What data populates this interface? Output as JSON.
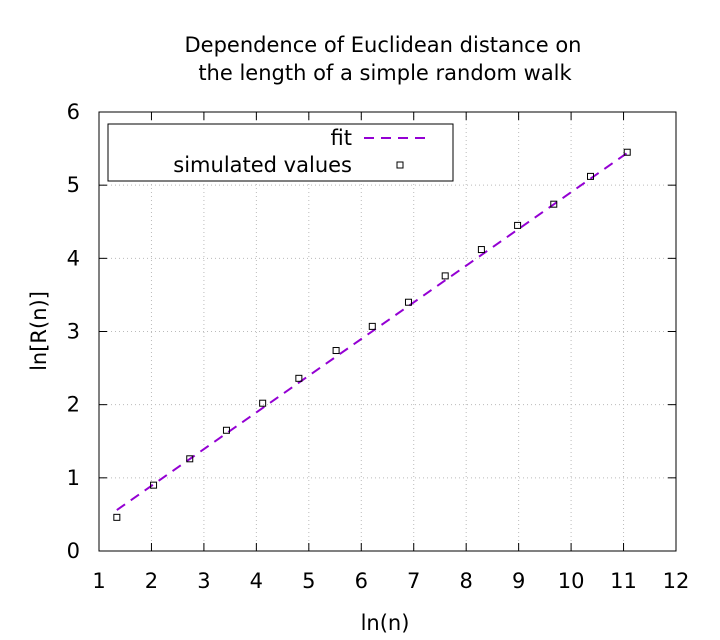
{
  "chart_data": {
    "type": "scatter",
    "title_lines": [
      "Dependence of Euclidean distance on",
      "the length of a simple random walk"
    ],
    "xlabel": "ln(n)",
    "ylabel": "ln[R(n)]",
    "xlim": [
      1,
      12
    ],
    "ylim": [
      0,
      6
    ],
    "xticks": [
      "1",
      "2",
      "3",
      "4",
      "5",
      "6",
      "7",
      "8",
      "9",
      "10",
      "11",
      "12"
    ],
    "yticks": [
      "0",
      "1",
      "2",
      "3",
      "4",
      "5",
      "6"
    ],
    "grid": true,
    "legend_position": "top-left",
    "series": [
      {
        "name": "fit",
        "kind": "line",
        "style": "dashed",
        "color": "#9400d3",
        "x": [
          1.34,
          11.07
        ],
        "y": [
          0.56,
          5.44
        ]
      },
      {
        "name": "simulated values",
        "kind": "points",
        "marker": "open-square",
        "color": "#000000",
        "x": [
          1.34,
          2.04,
          2.73,
          3.43,
          4.12,
          4.81,
          5.52,
          6.21,
          6.9,
          7.6,
          8.29,
          8.98,
          9.67,
          10.37,
          11.07
        ],
        "y": [
          0.46,
          0.9,
          1.26,
          1.65,
          2.02,
          2.36,
          2.74,
          3.07,
          3.4,
          3.76,
          4.12,
          4.45,
          4.74,
          5.12,
          5.45
        ]
      }
    ]
  }
}
